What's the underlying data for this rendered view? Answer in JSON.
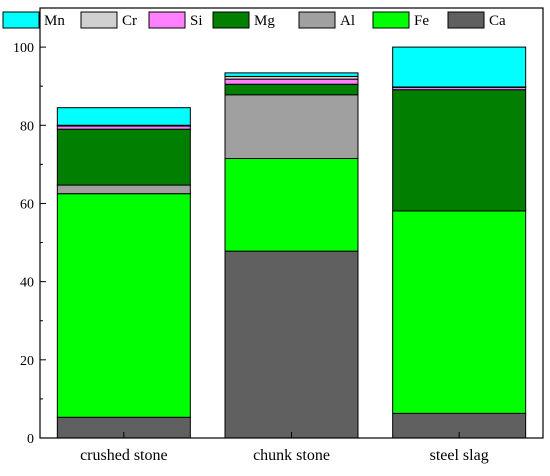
{
  "chart_data": {
    "type": "bar",
    "stacked": true,
    "categories": [
      "crushed stone",
      "chunk stone",
      "steel slag"
    ],
    "series": [
      {
        "name": "Ca",
        "color": "#606060",
        "values": [
          5.3,
          47.8,
          6.3
        ]
      },
      {
        "name": "Fe",
        "color": "#00ff00",
        "values": [
          57.2,
          23.7,
          51.8
        ]
      },
      {
        "name": "Al",
        "color": "#a0a0a0",
        "values": [
          2.2,
          16.3,
          0.0
        ]
      },
      {
        "name": "Mg",
        "color": "#007f00",
        "values": [
          14.3,
          2.7,
          31.0
        ]
      },
      {
        "name": "Si",
        "color": "#ff80ff",
        "values": [
          0.8,
          1.3,
          0.6
        ]
      },
      {
        "name": "Cr",
        "color": "#d0d0d0",
        "values": [
          0.2,
          0.7,
          0.1
        ]
      },
      {
        "name": "Mn",
        "color": "#00ffff",
        "values": [
          4.5,
          0.9,
          10.2
        ]
      }
    ],
    "legend_order": [
      "Mn",
      "Cr",
      "Si",
      "Mg",
      "Al",
      "Fe",
      "Ca"
    ],
    "legend_position": "top",
    "ylim": [
      0,
      110
    ],
    "yticks": [
      0,
      20,
      40,
      60,
      80,
      100
    ],
    "grid": false
  }
}
